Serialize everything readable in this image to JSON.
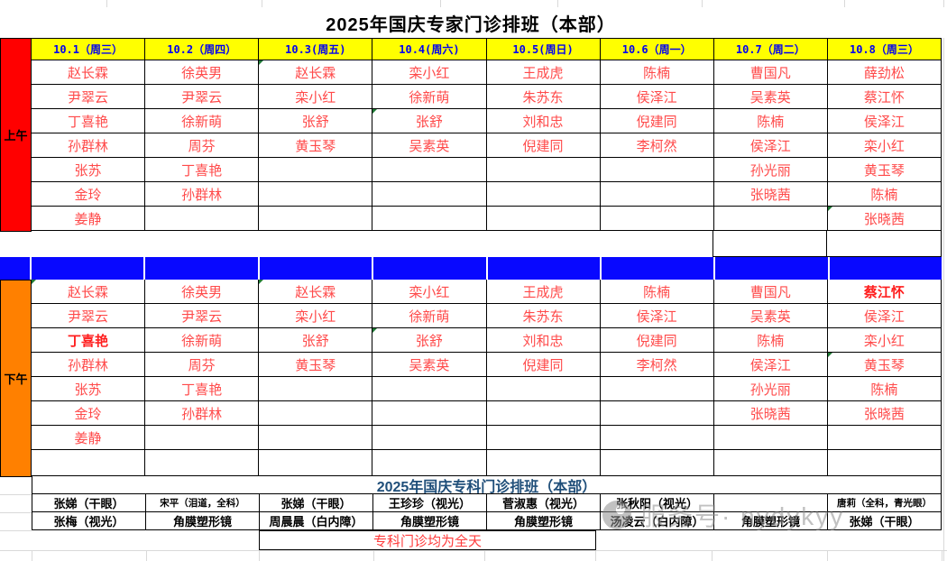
{
  "titles": {
    "main": "2025年国庆专家门诊排班（本部）",
    "specialist": "2025年国庆专科门诊排班（本部）",
    "note": "专科门诊均为全天",
    "morning_label": "上午",
    "afternoon_label": "下午"
  },
  "watermark": {
    "text": "服务号· nydykyy",
    "logo": "service-account-logo"
  },
  "colors": {
    "header_bg": "#FFFF00",
    "header_text": "#0000F0",
    "name_red": "#FF4A4A",
    "morning_bg": "#FF0000",
    "afternoon_bg": "#FF8000",
    "divider_blue": "#0808FF",
    "section_blue": "#1F4E79",
    "note_red": "#FF3B3B"
  },
  "expert_schedule": {
    "headers": [
      "10.1（周三）",
      "10.2（周四）",
      "10.3(周五)",
      "10.4(周六)",
      "10.5(周日)",
      "10.6（周一）",
      "10.7（周二）",
      "10.8（周三）"
    ],
    "morning": [
      [
        "赵长霖",
        "徐英男",
        "赵长霖",
        "栾小红",
        "王成虎",
        "陈楠",
        "曹国凡",
        "薛劲松"
      ],
      [
        "尹翠云",
        "尹翠云",
        "栾小红",
        "徐新萌",
        "朱苏东",
        "侯泽江",
        "吴素英",
        "蔡江怀"
      ],
      [
        "丁喜艳",
        "徐新萌",
        "张舒",
        "张舒",
        "刘和忠",
        "倪建同",
        "陈楠",
        "侯泽江"
      ],
      [
        "孙群林",
        "周芬",
        "黄玉琴",
        "吴素英",
        "倪建同",
        "李柯然",
        "侯泽江",
        "栾小红"
      ],
      [
        "张苏",
        "丁喜艳",
        "",
        "",
        "",
        "",
        "孙光丽",
        "黄玉琴"
      ],
      [
        "金玲",
        "孙群林",
        "",
        "",
        "",
        "",
        "张晓茜",
        "陈楠"
      ],
      [
        "姜静",
        "",
        "",
        "",
        "",
        "",
        "",
        "张晓茜"
      ]
    ],
    "afternoon": [
      [
        "赵长霖",
        "徐英男",
        "赵长霖",
        "栾小红",
        "王成虎",
        "陈楠",
        "曹国凡",
        "蔡江怀"
      ],
      [
        "尹翠云",
        "尹翠云",
        "栾小红",
        "徐新萌",
        "朱苏东",
        "侯泽江",
        "吴素英",
        "侯泽江"
      ],
      [
        "丁喜艳",
        "徐新萌",
        "张舒",
        "张舒",
        "刘和忠",
        "倪建同",
        "陈楠",
        "栾小红"
      ],
      [
        "孙群林",
        "周芬",
        "黄玉琴",
        "吴素英",
        "倪建同",
        "李柯然",
        "侯泽江",
        "黄玉琴"
      ],
      [
        "张苏",
        "丁喜艳",
        "",
        "",
        "",
        "",
        "孙光丽",
        "陈楠"
      ],
      [
        "金玲",
        "孙群林",
        "",
        "",
        "",
        "",
        "张晓茜",
        "张晓茜"
      ],
      [
        "姜静",
        "",
        "",
        "",
        "",
        "",
        "",
        ""
      ]
    ],
    "morning_green_corners": [
      [
        0,
        2
      ],
      [
        2,
        3
      ],
      [
        6,
        7
      ]
    ],
    "afternoon_green_corners": [
      [
        0,
        0
      ],
      [
        0,
        2
      ],
      [
        2,
        3
      ],
      [
        3,
        7
      ]
    ],
    "afternoon_bold_cells": [
      [
        0,
        7
      ],
      [
        2,
        0
      ]
    ]
  },
  "specialist_schedule": {
    "row_a": [
      "张娣（干眼）",
      "宋平（泪道，全科）",
      "张娣（干眼）",
      "王珍珍（视光）",
      "菅淑惠（视光）",
      "张秋阳（视光）",
      "",
      "唐莉（全科，青光眼）"
    ],
    "row_b": [
      "张梅（视光）",
      "角膜塑形镜",
      "周晨晨（白内障）",
      "角膜塑形镜",
      "角膜塑形镜",
      "汤凌云（白内障）",
      "角膜塑形镜",
      "张娣（干眼）"
    ],
    "small_cells_row_a": [
      1,
      7
    ]
  }
}
